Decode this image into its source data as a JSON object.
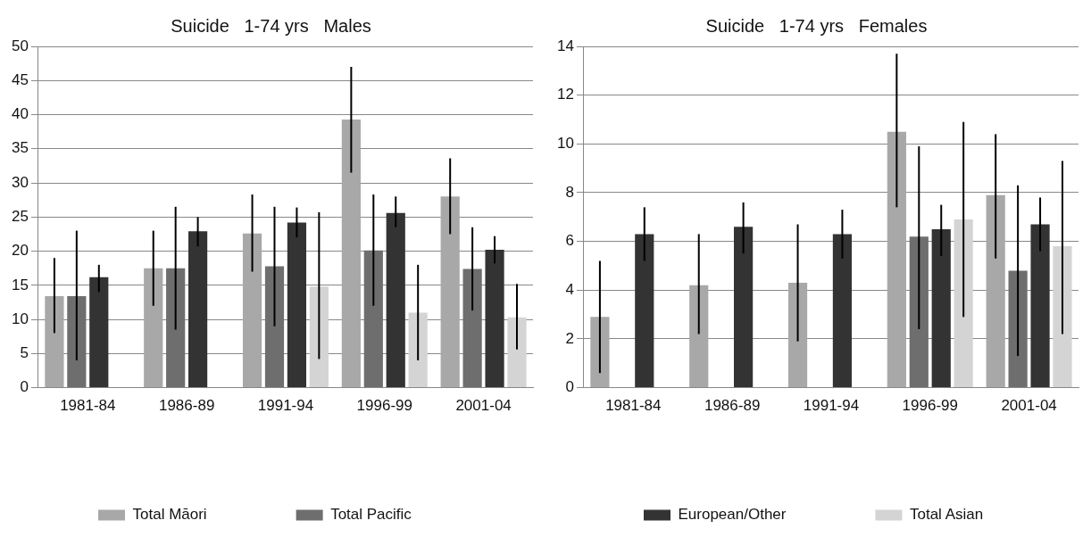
{
  "chart_data": [
    {
      "type": "bar",
      "title": "Suicide   1-74 yrs   Males",
      "categories": [
        "1981-84",
        "1986-89",
        "1991-94",
        "1996-99",
        "2001-04"
      ],
      "ylim": [
        0,
        50
      ],
      "yticks": [
        0,
        5,
        10,
        15,
        20,
        25,
        30,
        35,
        40,
        45,
        50
      ],
      "grid": "y",
      "legend": "bottom",
      "series": [
        {
          "name": "Total Māori",
          "color": "#a8a8a8",
          "values": [
            13.4,
            17.5,
            22.6,
            39.3,
            28
          ],
          "errors": [
            [
              8,
              19
            ],
            [
              12,
              23
            ],
            [
              17,
              28.3
            ],
            [
              31.5,
              47
            ],
            [
              22.5,
              33.6
            ]
          ]
        },
        {
          "name": "Total Pacific",
          "color": "#6e6e6e",
          "values": [
            13.4,
            17.5,
            17.8,
            20.1,
            17.4
          ],
          "errors": [
            [
              4,
              23
            ],
            [
              8.5,
              26.5
            ],
            [
              9,
              26.5
            ],
            [
              12,
              28.3
            ],
            [
              11.3,
              23.5
            ]
          ]
        },
        {
          "color": "#333333",
          "values": [
            16.2,
            22.9,
            24.2,
            25.6,
            20.2
          ],
          "errors": [
            [
              14,
              18
            ],
            [
              20.7,
              25
            ],
            [
              22,
              26.4
            ],
            [
              23.5,
              28
            ],
            [
              18.2,
              22.2
            ]
          ]
        },
        {
          "color": "#d4d4d4",
          "values": [
            null,
            null,
            14.8,
            11,
            10.3
          ],
          "errors": [
            null,
            null,
            [
              4.2,
              25.7
            ],
            [
              4,
              18
            ],
            [
              5.6,
              15.2
            ]
          ]
        }
      ]
    },
    {
      "type": "bar",
      "title": "Suicide   1-74 yrs   Females",
      "categories": [
        "1981-84",
        "1986-89",
        "1991-94",
        "1996-99",
        "2001-04"
      ],
      "ylim": [
        0,
        14
      ],
      "yticks": [
        0,
        2,
        4,
        6,
        8,
        10,
        12,
        14
      ],
      "grid": "y",
      "legend": "bottom",
      "series": [
        {
          "color": "#a8a8a8",
          "values": [
            2.9,
            4.2,
            4.3,
            10.5,
            7.9
          ],
          "errors": [
            [
              0.6,
              5.2
            ],
            [
              2.2,
              6.3
            ],
            [
              1.9,
              6.7
            ],
            [
              7.4,
              13.7
            ],
            [
              5.3,
              10.4
            ]
          ]
        },
        {
          "color": "#6e6e6e",
          "values": [
            null,
            null,
            null,
            6.2,
            4.8
          ],
          "errors": [
            null,
            null,
            null,
            [
              2.4,
              9.9
            ],
            [
              1.3,
              8.3
            ]
          ]
        },
        {
          "name": "European/Other",
          "color": "#333333",
          "values": [
            6.3,
            6.6,
            6.3,
            6.5,
            6.7
          ],
          "errors": [
            [
              5.2,
              7.4
            ],
            [
              5.5,
              7.6
            ],
            [
              5.3,
              7.3
            ],
            [
              5.4,
              7.5
            ],
            [
              5.6,
              7.8
            ]
          ]
        },
        {
          "name": "Total Asian",
          "color": "#d4d4d4",
          "values": [
            null,
            null,
            null,
            6.9,
            5.8
          ],
          "errors": [
            null,
            null,
            null,
            [
              2.9,
              10.9
            ],
            [
              2.2,
              9.3
            ]
          ]
        }
      ]
    }
  ]
}
